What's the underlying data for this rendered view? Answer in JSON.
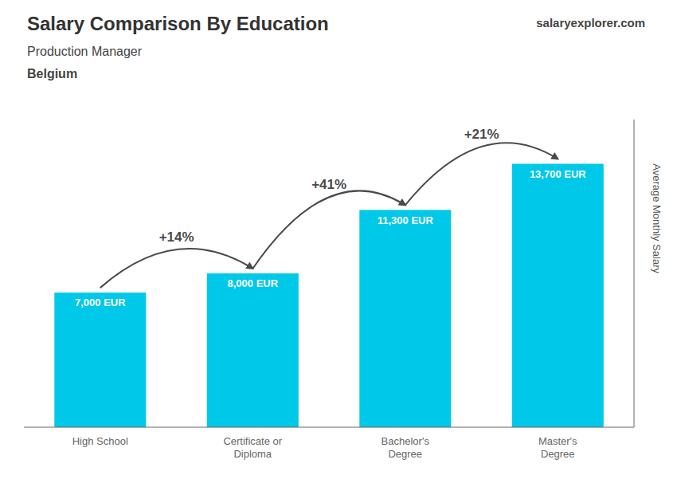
{
  "chart_data": {
    "type": "bar",
    "title": "Salary Comparison By Education",
    "subtitle": "Production Manager",
    "annotations": [
      "Belgium",
      "salaryexplorer.com"
    ],
    "y_label": "Average Monthly Salary",
    "categories": [
      "High School",
      "Certificate or\nDiploma",
      "Bachelor's\nDegree",
      "Master's\nDegree"
    ],
    "values": [
      7000,
      8000,
      11300,
      13700
    ],
    "value_labels": [
      "7,000 EUR",
      "8,000 EUR",
      "11,300 EUR",
      "13,700 EUR"
    ],
    "data_labels": true,
    "change_labels": [
      "+14%",
      "+41%",
      "+21%"
    ],
    "color": "#00C8E8",
    "ylim": [
      0,
      16000
    ],
    "tick_labels": "x",
    "grid": false
  }
}
